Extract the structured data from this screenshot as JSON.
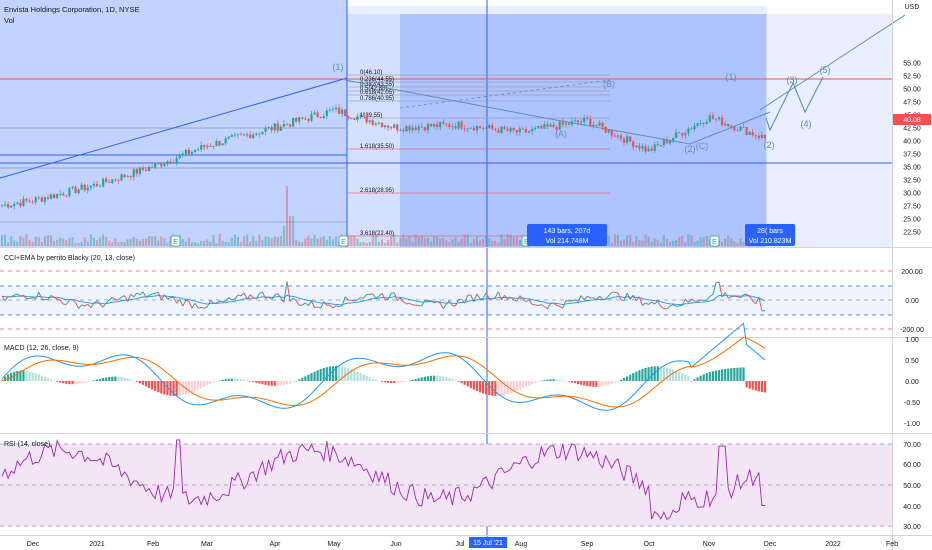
{
  "header": {
    "title": "Envista Holdings Corporation, 1D, NYSE",
    "vol_label": "Vol",
    "currency": "USD"
  },
  "colors": {
    "up": "#26a69a",
    "down": "#ef5350",
    "selection": "#2962ff",
    "fib_line": "#9598a1",
    "cci": "#26a69a",
    "cci_down": "#ef5350",
    "ema": "#2196f3",
    "macd": "#2196f3",
    "signal": "#ff6d00",
    "rsi": "#9c27b0",
    "rsi_band": "#f3e5f5",
    "wave": "#5d8fb9"
  },
  "price_axis": {
    "ticks": [
      "55.00",
      "52.50",
      "50.00",
      "47.50",
      "45.00",
      "42.50",
      "40.00",
      "37.50",
      "35.00",
      "32.50",
      "30.00",
      "27.50",
      "25.00",
      "22.50"
    ],
    "current_price": "40.08"
  },
  "time_axis": {
    "labels": [
      "Dec",
      "2021",
      "Feb",
      "Mar",
      "Apr",
      "May",
      "Jun",
      "Jul",
      "Aug",
      "Sep",
      "Oct",
      "Nov",
      "Dec",
      "2022",
      "Feb"
    ],
    "crosshair_label": "15 Jul '21"
  },
  "fib_levels": [
    {
      "label": "0(46.10)"
    },
    {
      "label": "0.236(44.55)"
    },
    {
      "label": "0.382(43.55)"
    },
    {
      "label": "0.5(42.80)"
    },
    {
      "label": "0.618(42.05)"
    },
    {
      "label": "0.786(40.95)"
    },
    {
      "label": "1(39.55)"
    },
    {
      "label": "1.618(35.50)"
    },
    {
      "label": "2.618(28.95)"
    },
    {
      "label": "3.618(22.40)"
    }
  ],
  "measure_boxes": [
    {
      "line1": "143 bars, 207d",
      "line2": "Vol 214.748M"
    },
    {
      "line1": "28( bars",
      "line2": "Vol 210.823M"
    }
  ],
  "wave_labels": [
    "(1)",
    "(B)",
    "(A)",
    "(2)",
    "(C)",
    "(1)",
    "(2)",
    "(3)",
    "(4)",
    "(5)"
  ],
  "earnings_marker": "E",
  "indicators": {
    "cci": {
      "label": "CCI+EMA by perrito Blacky (20, 13, close)",
      "ticks": [
        "200.00",
        "0.00",
        "-200.00"
      ]
    },
    "macd": {
      "label": "MACD (12, 26, close, 9)",
      "ticks": [
        "1.00",
        "0.50",
        "0.00",
        "-0.50",
        "-1.00"
      ]
    },
    "rsi": {
      "label": "RSI (14, close)",
      "ticks": [
        "70.00",
        "60.00",
        "50.00",
        "40.00",
        "30.00"
      ]
    }
  },
  "chart_data": {
    "type": "line",
    "title": "Envista Holdings Corporation, 1D, NYSE",
    "x_range": [
      "2020-12",
      "2022-02"
    ],
    "ylim": [
      21,
      56
    ],
    "x": [
      "Dec",
      "2021",
      "Feb",
      "Mar",
      "Apr",
      "May",
      "Jun",
      "Jul",
      "Aug",
      "Sep",
      "Oct",
      "Nov",
      "Dec"
    ],
    "series": [
      {
        "values": [
          28.5,
          31.5,
          35.0,
          39.0,
          42.5,
          45.8,
          42.5,
          43.0,
          41.5,
          43.8,
          38.0,
          44.5,
          40.1
        ]
      }
    ],
    "projection": [
      {
        "x": "Dec",
        "y": 37.5
      },
      {
        "x": "Dec",
        "y": 42.0
      },
      {
        "x": "Dec",
        "y": 39.5
      },
      {
        "x": "Dec",
        "y": 45.5
      }
    ]
  }
}
